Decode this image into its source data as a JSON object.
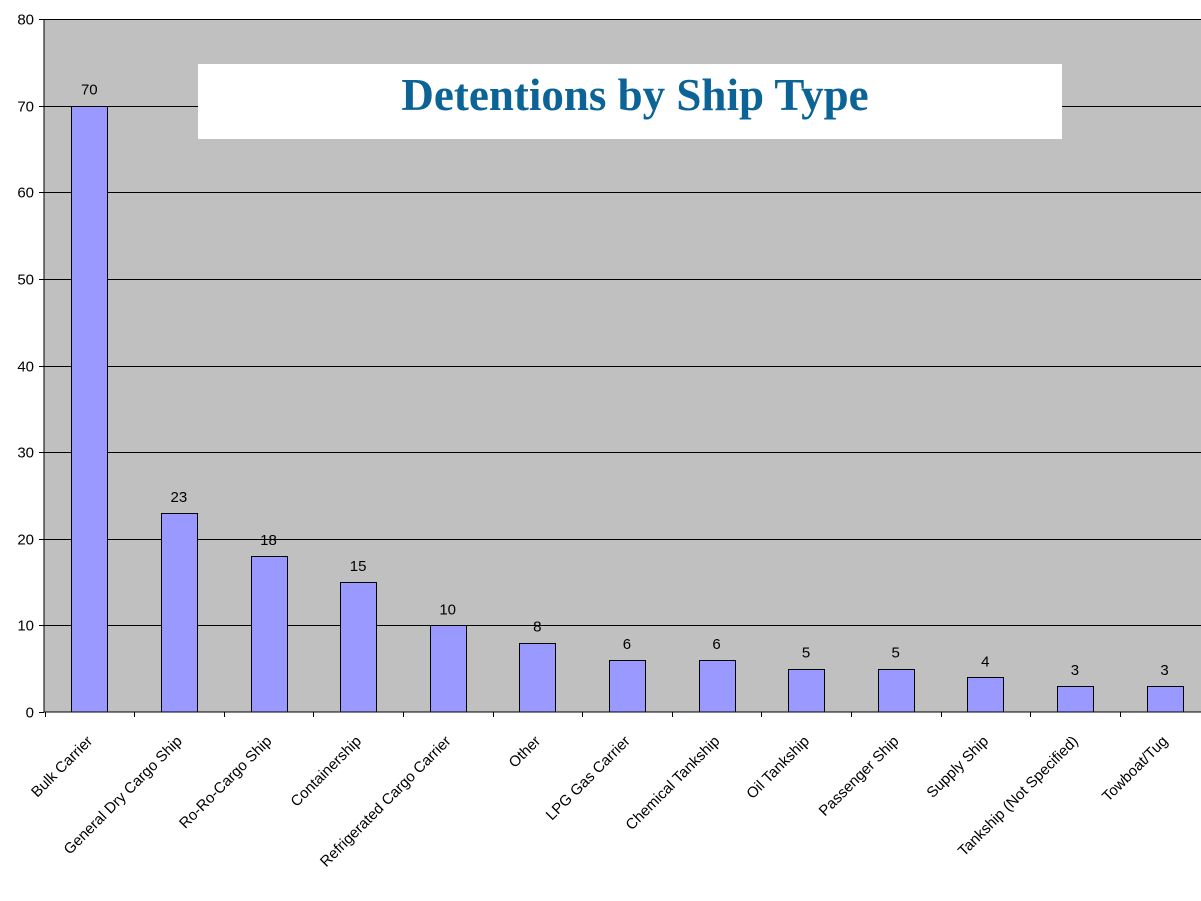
{
  "chart_data": {
    "type": "bar",
    "title": "Detentions by Ship Type",
    "xlabel": "",
    "ylabel": "",
    "categories": [
      "Bulk Carrier",
      "General Dry Cargo Ship",
      "Ro-Ro-Cargo Ship",
      "Containership",
      "Refrigerated Cargo Carrier",
      "Other",
      "LPG Gas Carrier",
      "Chemical Tankship",
      "Oil Tankship",
      "Passenger Ship",
      "Supply Ship",
      "Tankship (Not Specified)",
      "Towboat/Tug"
    ],
    "values": [
      70,
      23,
      18,
      15,
      10,
      8,
      6,
      6,
      5,
      5,
      4,
      3,
      3
    ],
    "ylim": [
      0,
      80
    ],
    "yticks": [
      0,
      10,
      20,
      30,
      40,
      50,
      60,
      70,
      80
    ],
    "grid": true,
    "data_labels": true,
    "legend": "none"
  },
  "colors": {
    "plot_background": "#c0c0c0",
    "bar_fill": "#9999ff",
    "bar_stroke": "#000000",
    "gridline": "#000000",
    "title_text": "#0b6396",
    "title_box": "#ffffff"
  }
}
